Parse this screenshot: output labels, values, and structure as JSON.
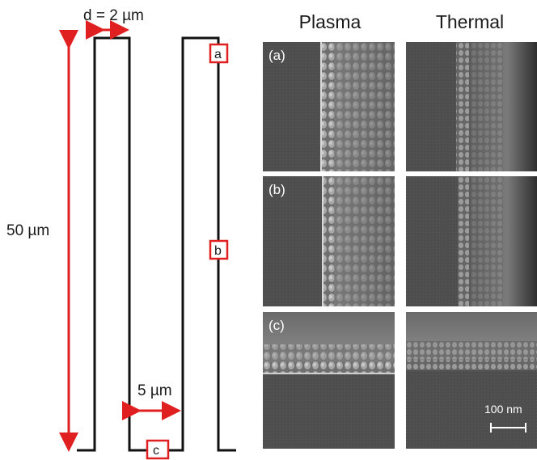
{
  "schematic": {
    "width_label": "d = 2 µm",
    "depth_label": "50 µm",
    "pitch_label": "5 µm",
    "marker_a": "a",
    "marker_b": "b",
    "marker_c": "c",
    "accent_color": "#e02020",
    "line_color": "#111111"
  },
  "sem": {
    "col_plasma": "Plasma",
    "col_thermal": "Thermal",
    "row_labels": [
      "(a)",
      "(b)",
      "(c)"
    ],
    "scale_bar": "100 nm"
  }
}
